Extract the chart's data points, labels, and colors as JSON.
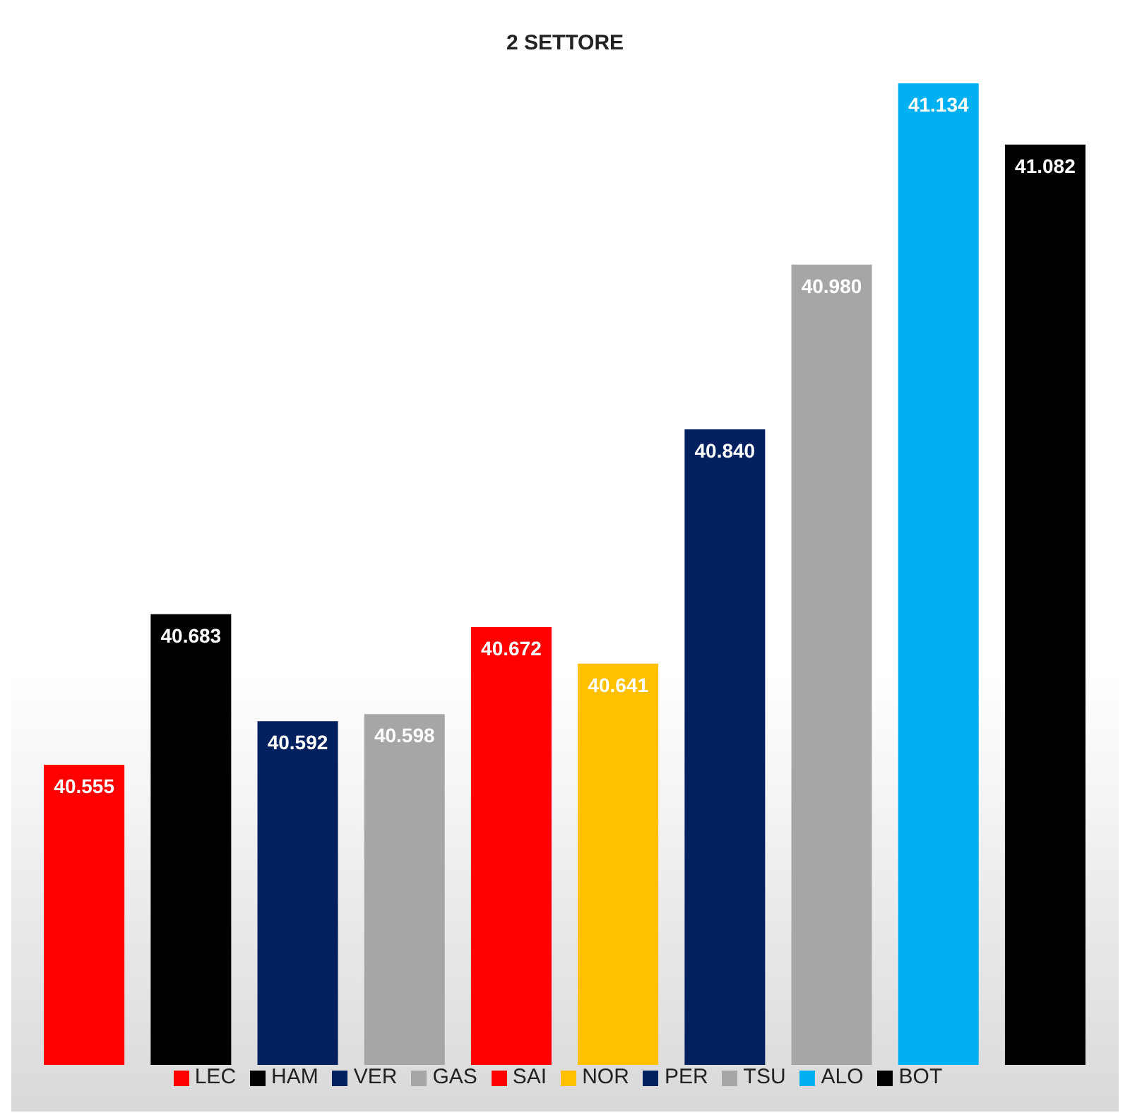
{
  "chart_data": {
    "type": "bar",
    "title": "2 SETTORE",
    "categories": [
      null,
      null,
      null,
      null,
      null,
      null,
      null,
      null,
      null,
      null
    ],
    "series": [
      {
        "name": "LEC",
        "color": "#ff0000",
        "values": [
          40.555,
          null,
          null,
          null,
          null,
          null,
          null,
          null,
          null,
          null
        ],
        "value_labels": [
          "40.555",
          null,
          null,
          null,
          null,
          null,
          null,
          null,
          null,
          null
        ]
      },
      {
        "name": "HAM",
        "color": "#000000",
        "values": [
          null,
          40.683,
          null,
          null,
          null,
          null,
          null,
          null,
          null,
          null
        ],
        "value_labels": [
          null,
          "40.683",
          null,
          null,
          null,
          null,
          null,
          null,
          null,
          null
        ]
      },
      {
        "name": "VER",
        "color": "#002060",
        "values": [
          null,
          null,
          40.592,
          null,
          null,
          null,
          null,
          null,
          null,
          null
        ],
        "value_labels": [
          null,
          null,
          "40.592",
          null,
          null,
          null,
          null,
          null,
          null,
          null
        ]
      },
      {
        "name": "GAS",
        "color": "#a6a6a6",
        "values": [
          null,
          null,
          null,
          40.598,
          null,
          null,
          null,
          null,
          null,
          null
        ],
        "value_labels": [
          null,
          null,
          null,
          "40.598",
          null,
          null,
          null,
          null,
          null,
          null
        ]
      },
      {
        "name": "SAI",
        "color": "#ff0000",
        "values": [
          null,
          null,
          null,
          null,
          40.672,
          null,
          null,
          null,
          null,
          null
        ],
        "value_labels": [
          null,
          null,
          null,
          null,
          "40.672",
          null,
          null,
          null,
          null,
          null
        ]
      },
      {
        "name": "NOR",
        "color": "#ffc000",
        "values": [
          null,
          null,
          null,
          null,
          null,
          40.641,
          null,
          null,
          null,
          null
        ],
        "value_labels": [
          null,
          null,
          null,
          null,
          null,
          "40.641",
          null,
          null,
          null,
          null
        ]
      },
      {
        "name": "PER",
        "color": "#002060",
        "values": [
          null,
          null,
          null,
          null,
          null,
          null,
          40.84,
          null,
          null,
          null
        ],
        "value_labels": [
          null,
          null,
          null,
          null,
          null,
          null,
          "40.840",
          null,
          null,
          null
        ]
      },
      {
        "name": "TSU",
        "color": "#a6a6a6",
        "values": [
          null,
          null,
          null,
          null,
          null,
          null,
          null,
          40.98,
          null,
          null
        ],
        "value_labels": [
          null,
          null,
          null,
          null,
          null,
          null,
          null,
          "40.980",
          null,
          null
        ]
      },
      {
        "name": "ALO",
        "color": "#00b0f0",
        "values": [
          null,
          null,
          null,
          null,
          null,
          null,
          null,
          null,
          41.134,
          null
        ],
        "value_labels": [
          null,
          null,
          null,
          null,
          null,
          null,
          null,
          null,
          "41.134",
          null
        ]
      },
      {
        "name": "BOT",
        "color": "#000000",
        "values": [
          null,
          null,
          null,
          null,
          null,
          null,
          null,
          null,
          null,
          41.082
        ],
        "value_labels": [
          null,
          null,
          null,
          null,
          null,
          null,
          null,
          null,
          null,
          "41.082"
        ]
      }
    ],
    "stacked": true,
    "ylim": [
      40.3,
      41.134
    ],
    "tick_labels": false,
    "legend": "bottom"
  }
}
